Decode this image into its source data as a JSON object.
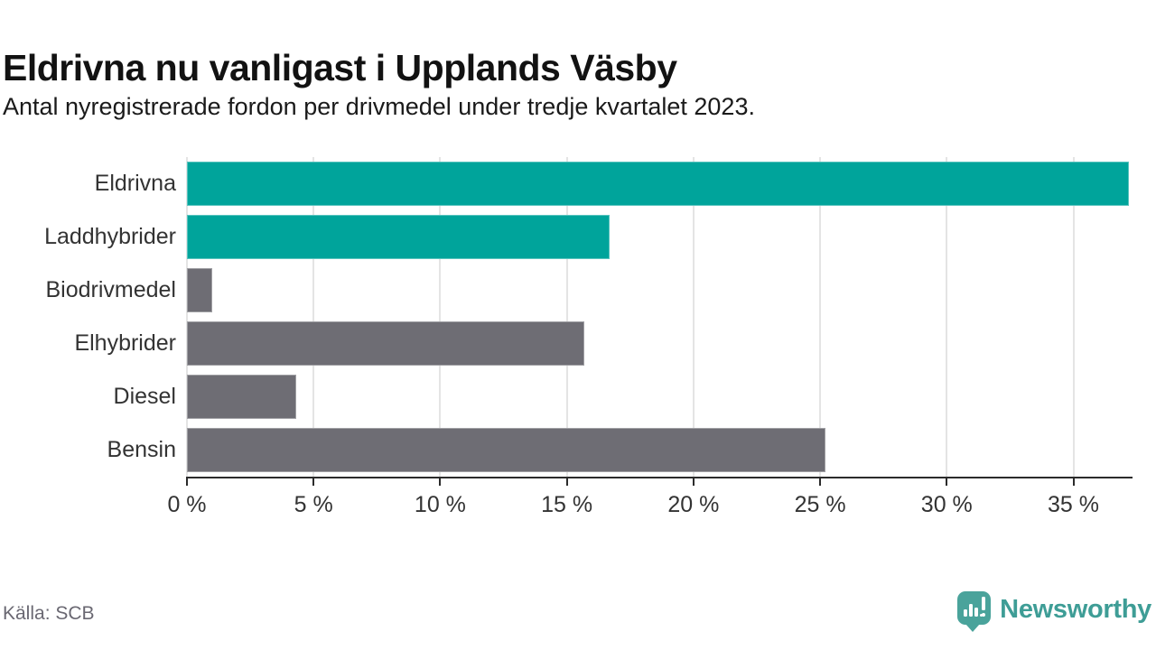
{
  "header": {
    "title": "Eldrivna nu vanligast i Upplands Väsby",
    "subtitle": "Antal nyregistrerade fordon per drivmedel under tredje kvartalet 2023."
  },
  "chart_data": {
    "type": "bar",
    "orientation": "horizontal",
    "title": "Eldrivna nu vanligast i Upplands Väsby",
    "subtitle": "Antal nyregistrerade fordon per drivmedel under tredje kvartalet 2023.",
    "categories": [
      "Eldrivna",
      "Laddhybrider",
      "Biodrivmedel",
      "Elhybrider",
      "Diesel",
      "Bensin"
    ],
    "values": [
      37.2,
      16.7,
      1.0,
      15.7,
      4.3,
      25.2
    ],
    "unit": "%",
    "bar_colors": [
      "#00a49b",
      "#00a49b",
      "#6e6d74",
      "#6e6d74",
      "#6e6d74",
      "#6e6d74"
    ],
    "highlight_color": "#00a49b",
    "base_color": "#6e6d74",
    "xlabel": "",
    "ylabel": "",
    "xlim": [
      0,
      37.3
    ],
    "xticks": [
      0,
      5,
      10,
      15,
      20,
      25,
      30,
      35
    ],
    "xtick_labels": [
      "0 %",
      "5 %",
      "10 %",
      "15 %",
      "20 %",
      "25 %",
      "30 %",
      "35 %"
    ],
    "grid": "vertical-light-gray",
    "legend": "none"
  },
  "footer": {
    "source": "Källa: SCB",
    "brand": "Newsworthy"
  },
  "icons": {
    "brand_icon": "bar-chart-speech-bubble-icon"
  },
  "colors": {
    "accent_teal": "#00a49b",
    "neutral_gray": "#6e6d74",
    "brand_teal": "#3e9d96",
    "gridline": "#e4e4e4",
    "axis": "#2b2b2b"
  }
}
